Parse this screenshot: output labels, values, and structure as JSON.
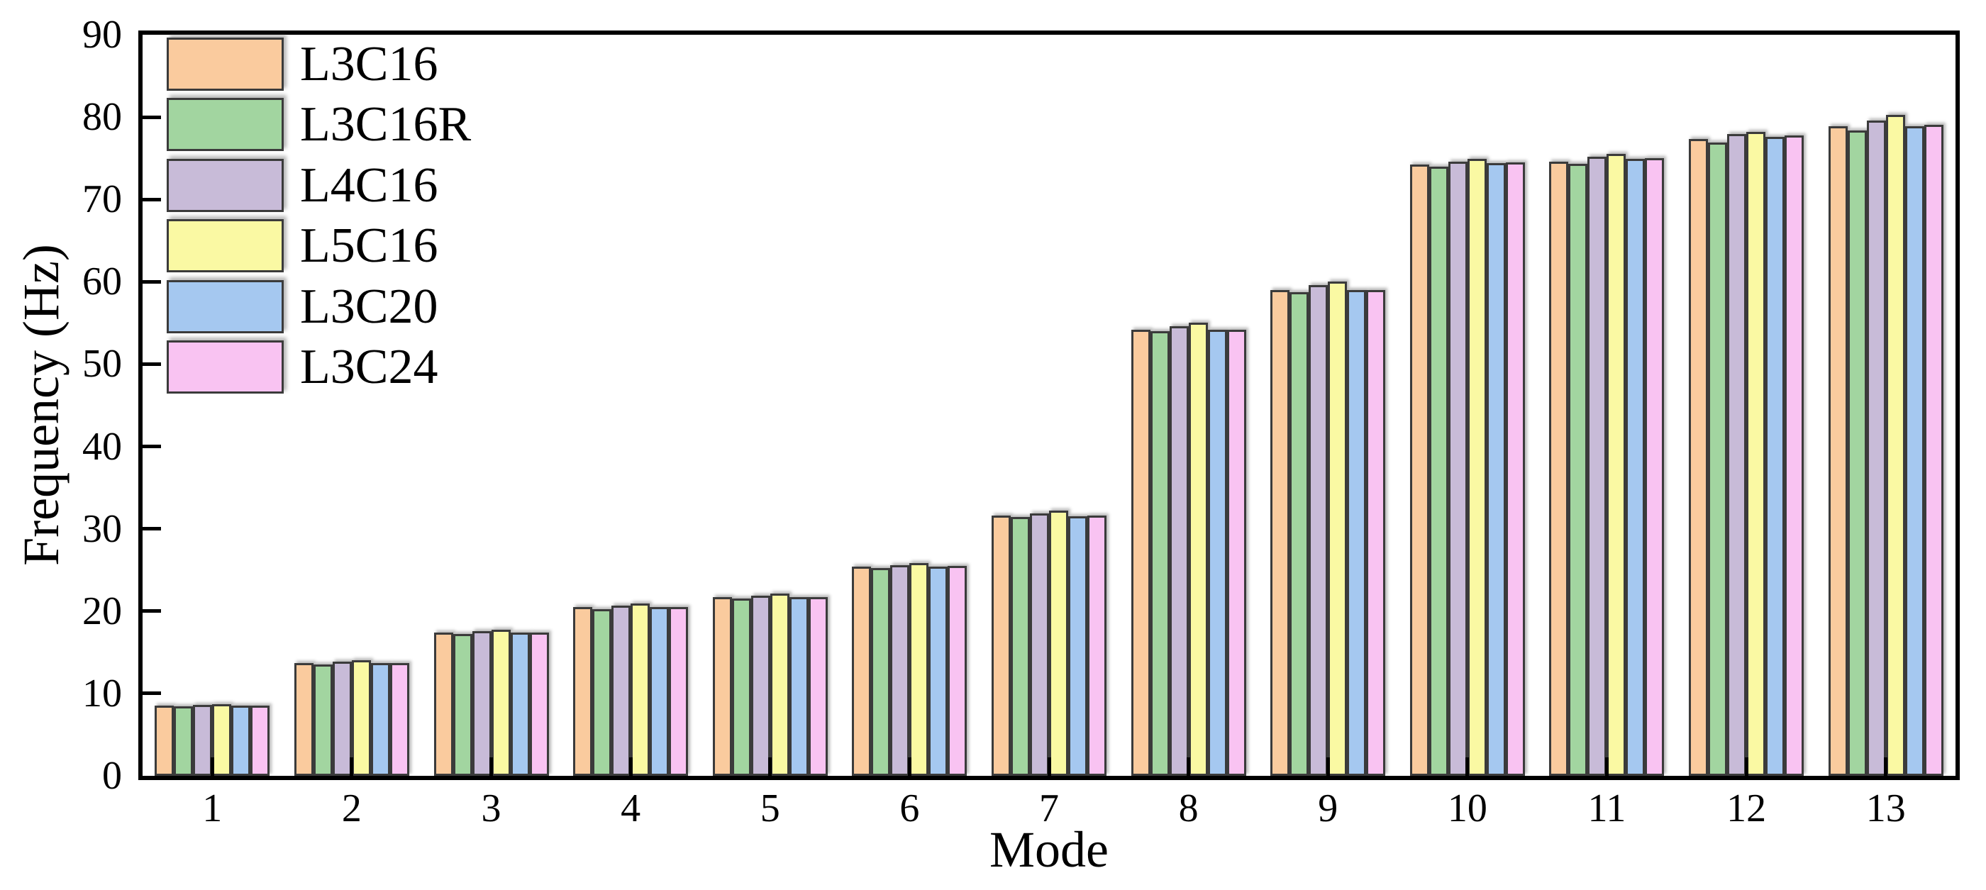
{
  "chart_data": {
    "type": "bar",
    "title": "",
    "xlabel": "Mode",
    "ylabel": "Frequency (Hz)",
    "categories": [
      "1",
      "2",
      "3",
      "4",
      "5",
      "6",
      "7",
      "8",
      "9",
      "10",
      "11",
      "12",
      "13"
    ],
    "series": [
      {
        "name": "L3C16",
        "color": "#FACB9E",
        "values": [
          8.5,
          13.7,
          17.4,
          20.5,
          21.7,
          25.4,
          31.6,
          54.2,
          59.0,
          74.2,
          74.6,
          77.3,
          78.9
        ]
      },
      {
        "name": "L3C16R",
        "color": "#A2D5A0",
        "values": [
          8.4,
          13.5,
          17.2,
          20.2,
          21.5,
          25.2,
          31.4,
          54.0,
          58.7,
          74.0,
          74.3,
          76.9,
          78.4
        ]
      },
      {
        "name": "L4C16",
        "color": "#C8BBD8",
        "values": [
          8.6,
          13.9,
          17.6,
          20.7,
          21.9,
          25.6,
          31.9,
          54.6,
          59.6,
          74.6,
          75.2,
          77.9,
          79.6
        ]
      },
      {
        "name": "L5C16",
        "color": "#FAF9A3",
        "values": [
          8.7,
          14.0,
          17.7,
          20.9,
          22.1,
          25.8,
          32.2,
          55.0,
          60.0,
          74.9,
          75.5,
          78.2,
          80.3
        ]
      },
      {
        "name": "L3C20",
        "color": "#A5C8F0",
        "values": [
          8.5,
          13.7,
          17.4,
          20.5,
          21.7,
          25.4,
          31.5,
          54.2,
          59.0,
          74.4,
          74.9,
          77.6,
          78.9
        ]
      },
      {
        "name": "L3C24",
        "color": "#F9C3F2",
        "values": [
          8.5,
          13.7,
          17.4,
          20.5,
          21.7,
          25.5,
          31.6,
          54.2,
          59.0,
          74.5,
          75.0,
          77.8,
          79.1
        ]
      }
    ],
    "ylim": [
      0,
      90
    ],
    "yticks": [
      0,
      10,
      20,
      30,
      40,
      50,
      60,
      70,
      80,
      90
    ],
    "grid": false,
    "legend_position": "top-left-inside",
    "bar_border_color": "#3B3B3B",
    "axis_color": "#000000",
    "background_color": "#FFFFFF"
  }
}
